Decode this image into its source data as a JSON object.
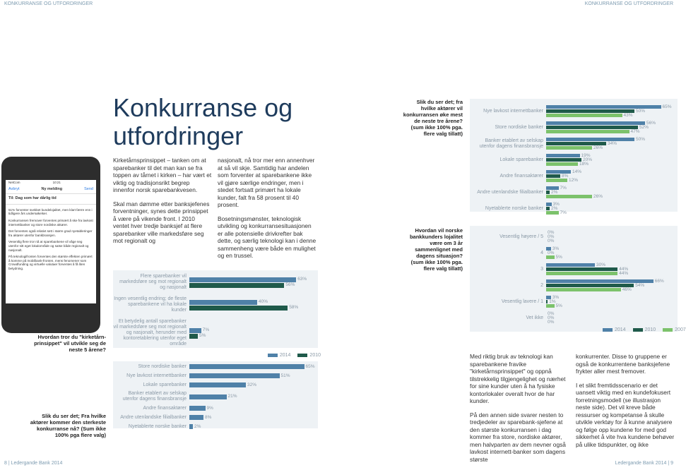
{
  "header": {
    "left": "KONKURRANSE OG UTFORDRINGER",
    "right": "KONKURRANSE OG UTFORDRINGER"
  },
  "title": [
    "Konkurranse og",
    "utfordringer"
  ],
  "phone": {
    "carrier": "NetCom",
    "time": "10:21",
    "cancel": "Avbryt",
    "heading": "Ny melding",
    "send": "Send",
    "to": "Til: Dag som har dårlig tid",
    "lines": [
      "51% forventer svekket kundelojalitet, men klart færre enn i tidligere års undersøkelser.",
      "Konkurransen fremover forventes primært å ske fra lavkost internettbanker og store nordiske aktører.",
      "Det forventes også relativt sett i større grad nyetableringer fra aktører utenfor bankbransjen.",
      "Vesentlig flere tror nå at sparebankene vil våge seg utenfor sitt eget lokalområde og satse både regionalt og nasjonalt.",
      "På teknologifronten forventes den største effekten primært å komme på mobilbank-fronten, mens fenomener som Crowdfunding og virtuelle valutaer forventes å få liten betydning."
    ]
  },
  "body": {
    "col1": [
      "Kirketårnsprinsippet – tanken om at sparebanker til det man kan se fra toppen av tårnet i kirken – har vært et viktig og tradisjonsrikt begrep innenfor norsk sparebankvesen.",
      "Skal man dømme etter banksjefenes forventninger, synes dette prinsippet å være på vikende front. I 2010 ventet hver tredje banksjef at flere sparebanker ville markedsføre seg mot regionalt og"
    ],
    "col2": [
      "nasjonalt, nå tror mer enn annenhver at så vil skje. Samtidig har andelen som forventer at sparebankene ikke vil gjøre særlige endringer, men i stedet fortsatt primært ha lokale kunder, falt fra 58 prosent til 40 prosent.",
      "Bosetningsmønster, teknologisk utvikling og konkurransesituasjonen er alle potensielle drivkrefter bak dette, og særlig teknologi kan i denne sammenheng være både en mulighet og en trussel."
    ],
    "col3": [
      "Med riktig bruk av teknologi kan sparebankene fravike \"kirketårnsprinsippet\" og oppnå tilstrekkelig tilgjengelighet og nærhet for sine kunder uten å ha fysiske kontorlokaler overalt hvor de har kunder.",
      "På den annen side svarer nesten to tredjedeler av sparebank-sjefene at den største konkurransen i dag kommer fra store, nordiske aktører, men halvparten av dem nevner også lavkost internett-banker som dagens største"
    ],
    "col4": [
      "konkurrenter. Disse to gruppene er også de konkurrentene banksjefene frykter aller mest fremover.",
      "I et slikt fremtidsscenario er det uansett viktig med en kundefokusert forretningsmodell (se illustrasjon neste side). Det vil kreve både ressurser og kompetanse å skulle utvikle verktøy for å kunne analysere og følge opp kundene for med god sikkerhet å vite hva kundene behøver på ulike tidspunkter, og ikke"
    ]
  },
  "footer": {
    "left_page": "8",
    "left_text": "Ledergande Bank 2014",
    "right_text": "Ledergande Bank 2014",
    "right_page": "9"
  },
  "chart_data": [
    {
      "type": "bar",
      "title": "Hvordan tror du \"kirketårn-prinsippet\" vil utvikle seg de neste 5 årene?",
      "categories": [
        "Flere sparebanker vil markedsføre seg mot regionalt og nasjonalt",
        "Ingen vesentlig endring; de fleste sparebankene vil ha lokale kunder",
        "Et betydelig antall sparebanker vil markedsføre seg mot regionalt og nasjonalt, herunder med kontoretablering utenfor eget område"
      ],
      "series": [
        {
          "name": "2014",
          "color": "#4f81a8",
          "values": [
            63,
            40,
            7
          ],
          "value_labels": [
            "63%",
            "40%",
            "7%"
          ]
        },
        {
          "name": "2010",
          "color": "#1f5a4a",
          "values": [
            56,
            58,
            5
          ],
          "value_labels": [
            "56%",
            "58%",
            "5%"
          ]
        }
      ],
      "legend": "bottom-right"
    },
    {
      "type": "bar",
      "title": "Slik du ser det; Fra hvilke aktører kommer den sterkeste konkurranse nå? (Sum ikke 100% pga flere valg)",
      "categories": [
        "Store nordiske banker",
        "Nye lavkost internettbanker",
        "Lokale sparebanker",
        "Banker etablert av selskap utenfor dagens finansbransje",
        "Andre finansaktører",
        "Andre utenlandske filialbanker",
        "Nyetablerte norske banker"
      ],
      "values": [
        65,
        51,
        32,
        21,
        9,
        8,
        2
      ],
      "value_labels": [
        "65%",
        "51%",
        "32%",
        "21%",
        "9%",
        "8%",
        "2%"
      ],
      "color": "#4f81a8"
    },
    {
      "type": "bar",
      "title": "Slik du ser det; fra hvilke aktører vil konkurransen øke mest de neste tre årene? (sum ikke 100% pga. flere valg tillatt)",
      "categories": [
        "Nye lavkost internettbanker",
        "Store nordiske banker",
        "Banker etablert av selskap utenfor dagens finansbransje",
        "Lokale sparebanker",
        "Andre finansaktører",
        "Andre utenlandske filialbanker",
        "Nyetablerte norske banker"
      ],
      "series": [
        {
          "color": "#4f81a8",
          "values": [
            65,
            56,
            50,
            19,
            14,
            7,
            3
          ],
          "value_labels": [
            "65%",
            "56%",
            "50%",
            "19%",
            "14%",
            "7%",
            "3%"
          ]
        },
        {
          "color": "#1f5a4a",
          "values": [
            50,
            52,
            34,
            20,
            8,
            2,
            2
          ],
          "value_labels": [
            "50%",
            "52%",
            "34%",
            "20%",
            "8%",
            "2%",
            "2%"
          ]
        },
        {
          "color": "#7cc26b",
          "values": [
            43,
            47,
            26,
            18,
            12,
            26,
            7
          ],
          "value_labels": [
            "43%",
            "47%",
            "26%",
            "18%",
            "12%",
            "26%",
            "7%"
          ]
        }
      ]
    },
    {
      "type": "bar",
      "title": "Hvordan vil norske bankkunders lojalitet være om 3 år sammenlignet med dagens situasjon? (sum ikke 100% pga. flere valg tillatt)",
      "categories": [
        "Vesentlig høyere / 5",
        "4",
        "3",
        "2",
        "Vesentlig lavere / 1",
        "Vet ikke"
      ],
      "series": [
        {
          "name": "2014",
          "color": "#4f81a8",
          "values": [
            0,
            3,
            30,
            66,
            3,
            0
          ],
          "value_labels": [
            "0%",
            "3%",
            "30%",
            "66%",
            "3%",
            "0%"
          ]
        },
        {
          "name": "2010",
          "color": "#1f5a4a",
          "values": [
            0,
            0,
            44,
            54,
            1,
            0
          ],
          "value_labels": [
            "0%",
            "0%",
            "44%",
            "54%",
            "1%",
            "0%"
          ]
        },
        {
          "name": "2007",
          "color": "#7cc26b",
          "values": [
            0,
            5,
            44,
            46,
            5,
            0
          ],
          "value_labels": [
            "0%",
            "5%",
            "44%",
            "46%",
            "5%",
            "0%"
          ]
        }
      ],
      "legend": "bottom"
    }
  ]
}
